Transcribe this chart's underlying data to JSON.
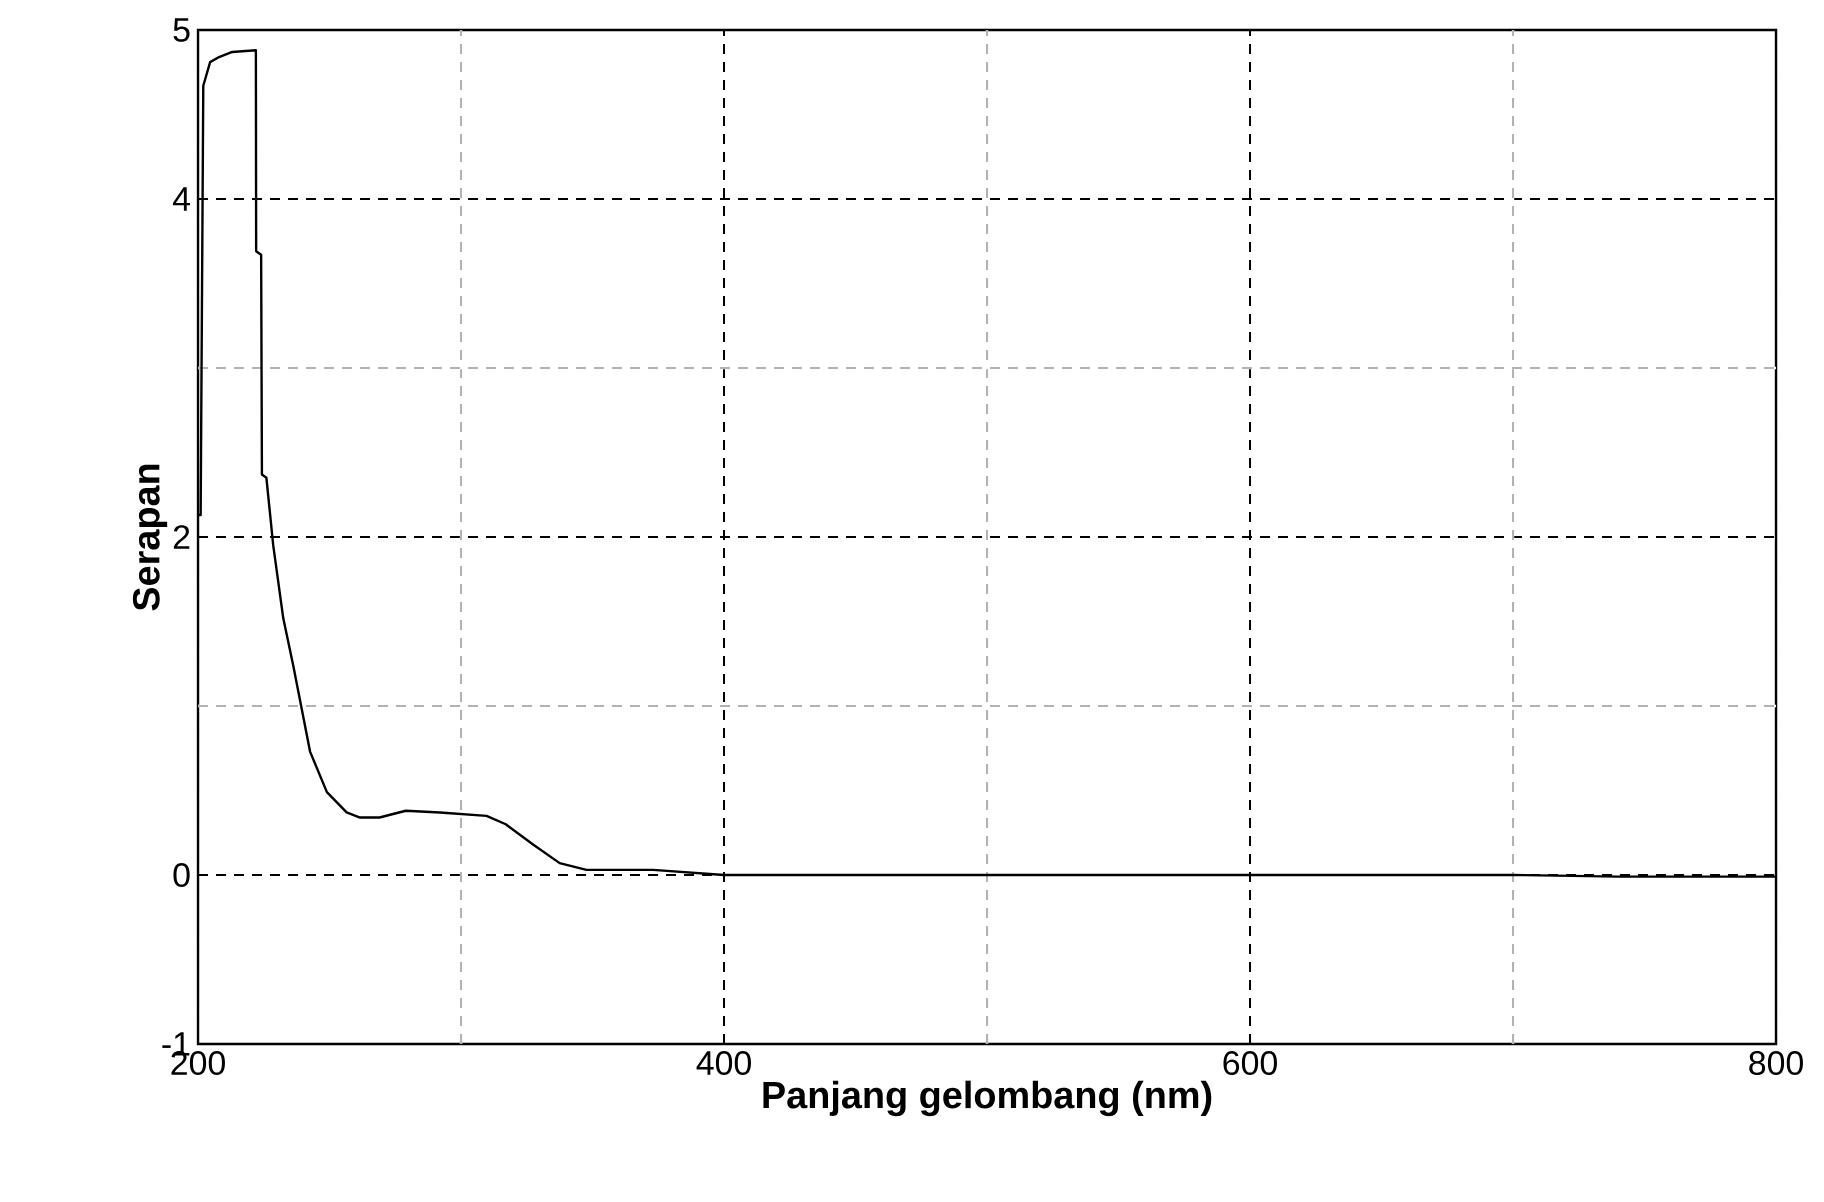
{
  "chart_data": {
    "type": "line",
    "xlabel": "Panjang gelombang (nm)",
    "ylabel": "Serapan",
    "x": [
      200,
      201,
      202,
      204.6,
      208,
      213,
      222,
      222.1,
      224,
      224.3,
      226,
      228.6,
      232.4,
      236.2,
      242.6,
      249,
      256.5,
      261.6,
      269,
      279,
      292,
      309.7,
      317,
      327.4,
      337.5,
      347.7,
      373,
      400,
      500,
      600,
      700,
      740,
      760,
      800
    ],
    "series": [
      {
        "color": "#000000",
        "values": [
          2.13,
          2.13,
          4.67,
          4.81,
          4.84,
          4.87,
          4.88,
          3.69,
          3.67,
          2.37,
          2.35,
          1.95,
          1.52,
          1.24,
          0.73,
          0.49,
          0.37,
          0.34,
          0.34,
          0.38,
          0.37,
          0.35,
          0.3,
          0.18,
          0.07,
          0.03,
          0.03,
          0.0,
          0.0,
          0.0,
          0.0,
          -0.01,
          -0.01,
          -0.01
        ]
      }
    ],
    "xlim": [
      200,
      800
    ],
    "ylim": [
      -1,
      5
    ],
    "xticks": [
      200,
      {
        "value": 300,
        "label": null
      },
      400,
      {
        "value": 500,
        "label": null
      },
      600,
      {
        "value": 700,
        "label": null
      },
      800
    ],
    "yticks": [
      -1,
      0,
      {
        "value": 1,
        "label": null
      },
      2,
      {
        "value": 3,
        "label": null
      },
      4,
      5
    ],
    "grid": true,
    "line_style": "solid",
    "marker": "none"
  }
}
